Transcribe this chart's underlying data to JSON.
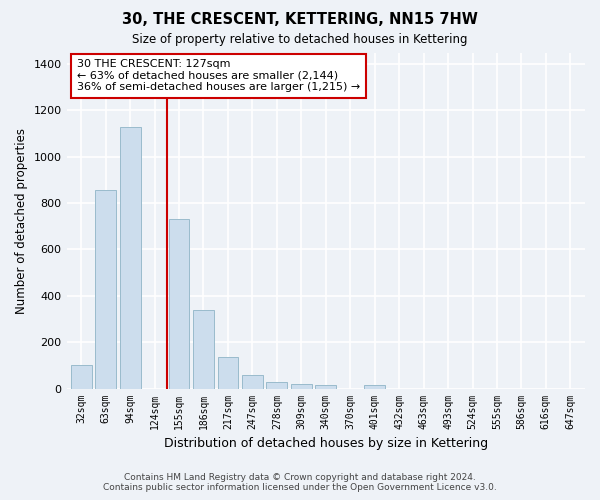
{
  "title": "30, THE CRESCENT, KETTERING, NN15 7HW",
  "subtitle": "Size of property relative to detached houses in Kettering",
  "xlabel": "Distribution of detached houses by size in Kettering",
  "ylabel": "Number of detached properties",
  "bar_color": "#ccdded",
  "bar_edge_color": "#99bbcc",
  "categories": [
    "32sqm",
    "63sqm",
    "94sqm",
    "124sqm",
    "155sqm",
    "186sqm",
    "217sqm",
    "247sqm",
    "278sqm",
    "309sqm",
    "340sqm",
    "370sqm",
    "401sqm",
    "432sqm",
    "463sqm",
    "493sqm",
    "524sqm",
    "555sqm",
    "586sqm",
    "616sqm",
    "647sqm"
  ],
  "values": [
    103,
    855,
    1130,
    0,
    730,
    340,
    135,
    60,
    30,
    18,
    15,
    0,
    15,
    0,
    0,
    0,
    0,
    0,
    0,
    0,
    0
  ],
  "ylim": [
    0,
    1450
  ],
  "yticks": [
    0,
    200,
    400,
    600,
    800,
    1000,
    1200,
    1400
  ],
  "property_line_x": 3.5,
  "annotation_text": "30 THE CRESCENT: 127sqm\n← 63% of detached houses are smaller (2,144)\n36% of semi-detached houses are larger (1,215) →",
  "annotation_box_color": "#ffffff",
  "annotation_box_edge": "#cc0000",
  "line_color": "#cc0000",
  "footer_line1": "Contains HM Land Registry data © Crown copyright and database right 2024.",
  "footer_line2": "Contains public sector information licensed under the Open Government Licence v3.0.",
  "bg_color": "#eef2f7",
  "grid_color": "#ffffff"
}
